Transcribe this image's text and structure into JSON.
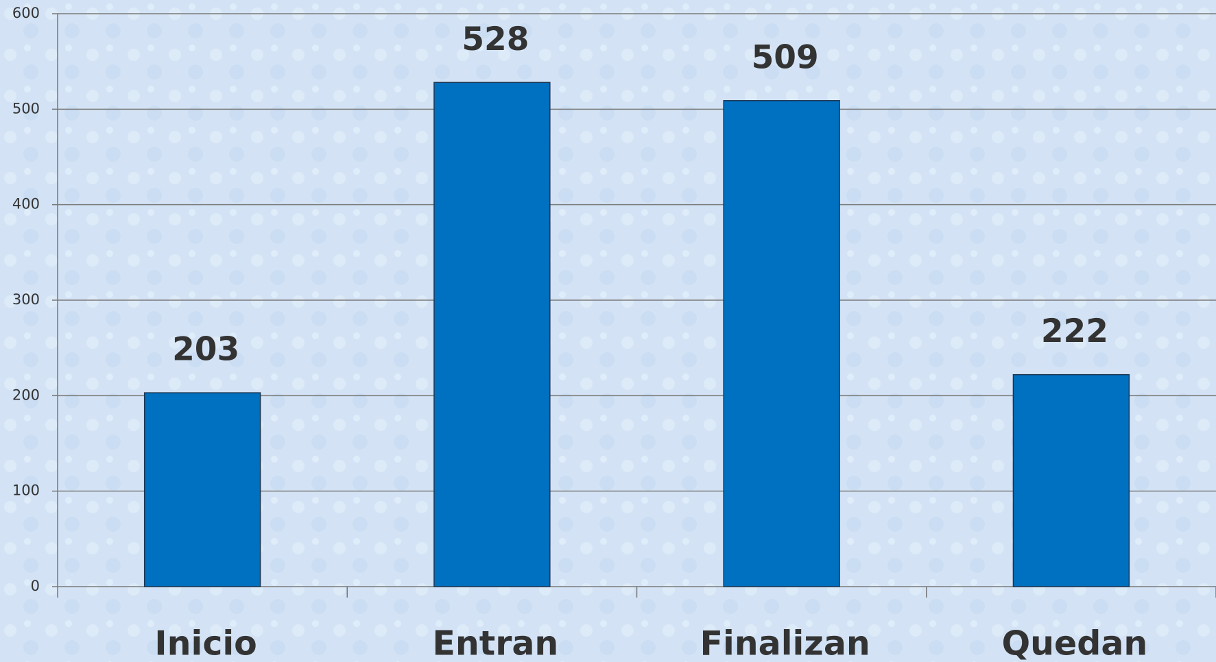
{
  "chart_data": {
    "type": "bar",
    "categories": [
      "Inicio",
      "Entran",
      "Finalizan",
      "Quedan"
    ],
    "values": [
      203,
      528,
      509,
      222
    ],
    "color": "#0070c0",
    "ylim": [
      0,
      600
    ],
    "yticks": [
      0,
      100,
      200,
      300,
      400,
      500,
      600
    ],
    "grid": true
  }
}
